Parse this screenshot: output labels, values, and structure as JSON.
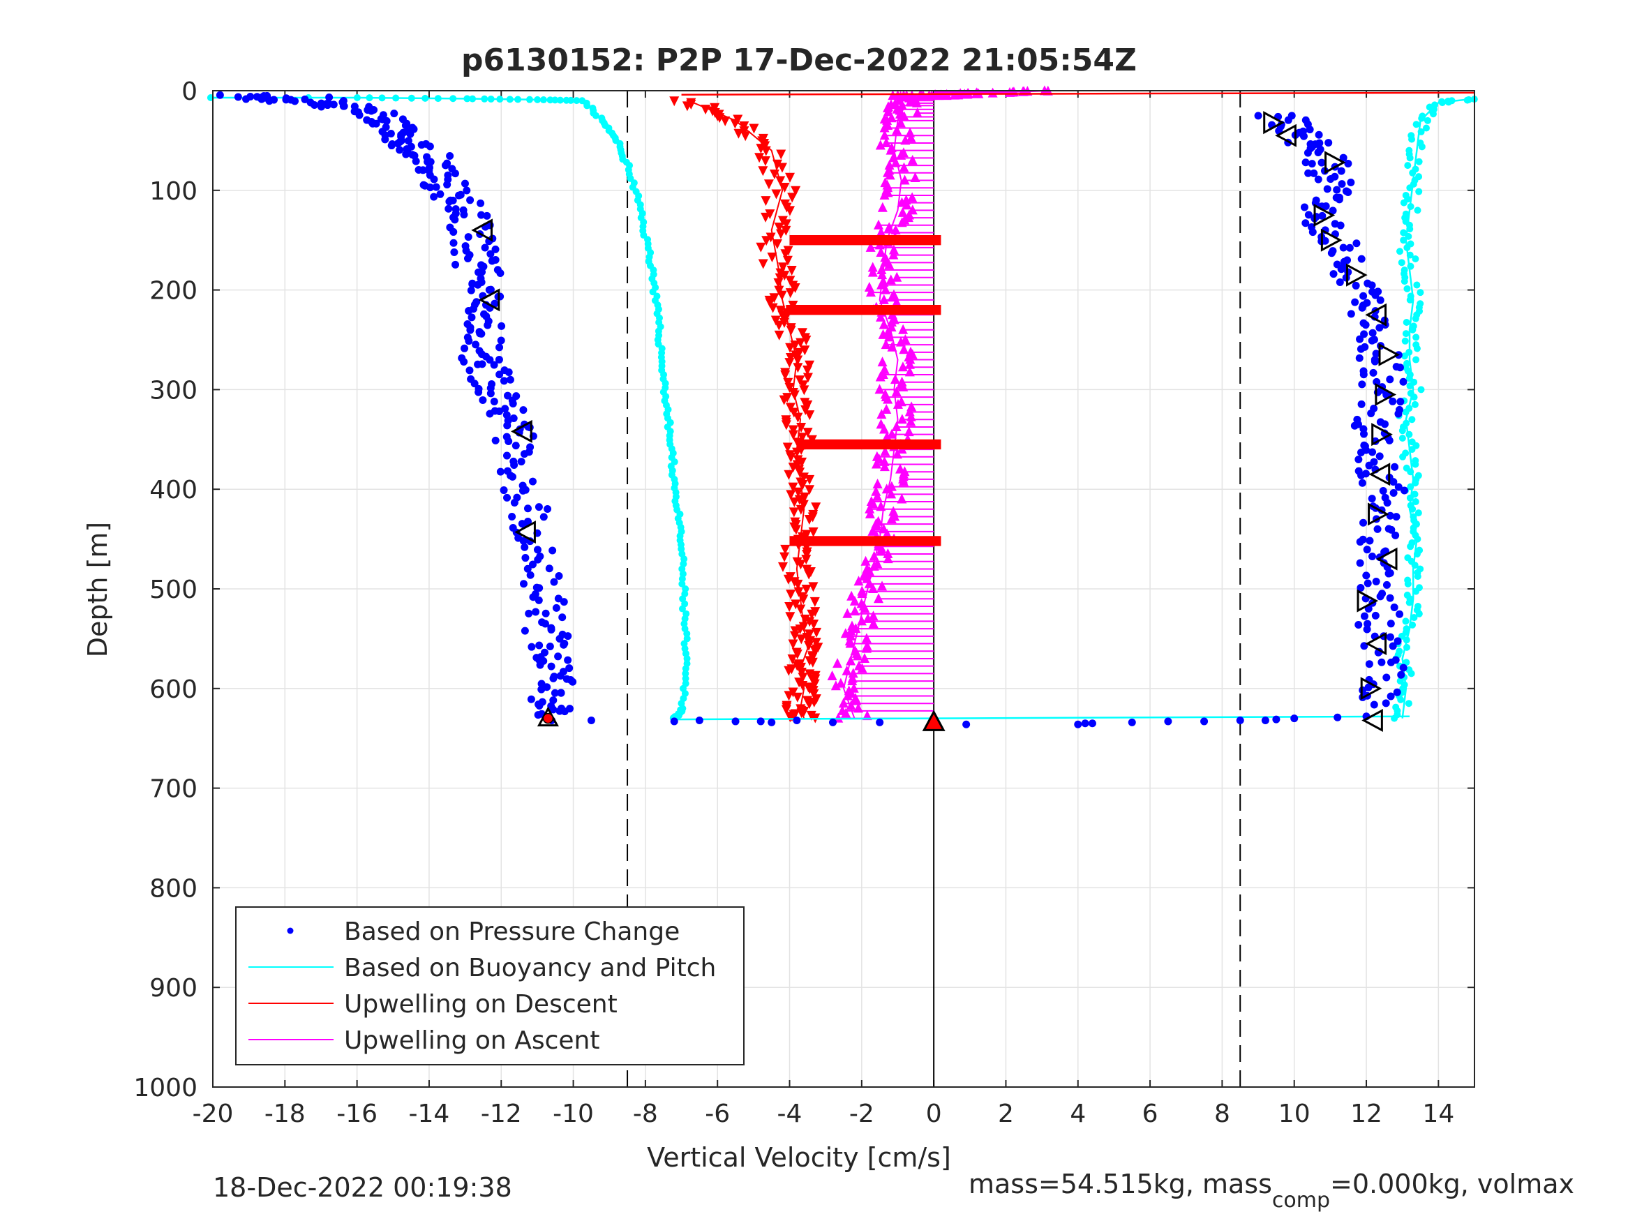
{
  "chart_data": {
    "type": "scatter",
    "title": "p6130152: P2P 17-Dec-2022 21:05:54Z",
    "xlabel": "Vertical Velocity [cm/s]",
    "ylabel": "Depth [m]",
    "xlim": [
      -20,
      15
    ],
    "ylim": [
      0,
      1000
    ],
    "y_reversed": true,
    "grid": true,
    "x_ticks": [
      -20,
      -18,
      -16,
      -14,
      -12,
      -10,
      -8,
      -6,
      -4,
      -2,
      0,
      2,
      4,
      6,
      8,
      10,
      12,
      14
    ],
    "y_ticks": [
      0,
      100,
      200,
      300,
      400,
      500,
      600,
      700,
      800,
      900,
      1000
    ],
    "reference_lines": [
      {
        "x": -8.5,
        "style": "dashed"
      },
      {
        "x": 8.5,
        "style": "dashed"
      },
      {
        "x": 0,
        "style": "solid"
      }
    ],
    "legend": {
      "position": "bottom-left",
      "entries": [
        {
          "label": "Based on Pressure Change",
          "color": "#0000ff",
          "marker": "dot"
        },
        {
          "label": "Based on Buoyancy and Pitch",
          "color": "#00ffff",
          "marker": "line"
        },
        {
          "label": "Upwelling on Descent",
          "color": "#ff0000",
          "marker": "line"
        },
        {
          "label": "Upwelling on Ascent",
          "color": "#ff00ff",
          "marker": "line"
        }
      ]
    },
    "series": [
      {
        "name": "Based on Pressure Change",
        "segment": "descent",
        "color": "#0000ff",
        "x": [
          -19.2,
          -18.5,
          -17,
          -16.5,
          -15.5,
          -15,
          -14.8,
          -14.5,
          -14.0,
          -13.8,
          -13.5,
          -13.2,
          -12.9,
          -12.8,
          -12.7,
          -12.6,
          -12.5,
          -12.4,
          -12.6,
          -12.5,
          -12.3,
          -12.0,
          -11.8,
          -11.6,
          -11.5,
          -11.3,
          -11.2,
          -11.0,
          -10.9,
          -10.8,
          -10.7,
          -10.6,
          -10.5,
          -10.6,
          -10.7
        ],
        "y": [
          5,
          8,
          10,
          15,
          25,
          35,
          45,
          55,
          65,
          80,
          95,
          110,
          130,
          150,
          170,
          190,
          210,
          230,
          250,
          270,
          290,
          310,
          330,
          350,
          380,
          410,
          440,
          470,
          500,
          530,
          555,
          575,
          595,
          615,
          630
        ]
      },
      {
        "name": "Based on Pressure Change",
        "segment": "ascent",
        "color": "#0000ff",
        "x": [
          9.6,
          10.1,
          10.6,
          10.9,
          11.0,
          10.8,
          10.9,
          11.2,
          11.6,
          11.8,
          12.0,
          12.3,
          12.5,
          12.4,
          12.2,
          12.3,
          12.4,
          12.5,
          12.3,
          12.2,
          12.2,
          12.4,
          12.3,
          12.5,
          12.2
        ],
        "y": [
          25,
          40,
          55,
          75,
          95,
          115,
          135,
          160,
          185,
          210,
          235,
          260,
          285,
          310,
          335,
          360,
          385,
          410,
          440,
          470,
          500,
          530,
          560,
          590,
          620
        ]
      },
      {
        "name": "Based on Pressure Change",
        "segment": "bottom",
        "color": "#0000ff",
        "x": [
          -10.6,
          -9.5,
          -7.2,
          -6.5,
          -5.5,
          -4.8,
          -4.5,
          -3.8,
          -2.8,
          -1.5,
          0.9,
          4.0,
          4.2,
          4.4,
          5.5,
          6.5,
          7.5,
          8.5,
          9.2,
          9.5,
          10.0,
          11.2,
          12.0
        ],
        "y": [
          632,
          632,
          633,
          632,
          633,
          633,
          634,
          632,
          634,
          634,
          636,
          636,
          635,
          635,
          634,
          633,
          633,
          632,
          632,
          631,
          630,
          629,
          628
        ]
      },
      {
        "name": "Based on Buoyancy and Pitch",
        "segment": "descent",
        "color": "#00ffff",
        "x": [
          -20.0,
          -16.0,
          -13.0,
          -11.0,
          -9.7,
          -9.2,
          -8.8,
          -8.5,
          -8.2,
          -8.0,
          -7.8,
          -7.7,
          -7.6,
          -7.5,
          -7.4,
          -7.3,
          -7.2,
          -7.1,
          -7.0,
          -6.95,
          -6.9,
          -6.9,
          -6.95,
          -7.2
        ],
        "y": [
          7,
          7,
          8,
          9,
          10,
          30,
          50,
          75,
          110,
          145,
          180,
          215,
          250,
          285,
          320,
          355,
          390,
          425,
          460,
          500,
          540,
          580,
          620,
          631
        ]
      },
      {
        "name": "Based on Buoyancy and Pitch",
        "segment": "ascent",
        "color": "#00ffff",
        "x": [
          13.0,
          13.1,
          13.0,
          13.2,
          13.3,
          13.3,
          13.4,
          13.2,
          13.3,
          13.2,
          13.1,
          13.3,
          13.2,
          13.2,
          13.3,
          13.2,
          13.1,
          13.2,
          13.3,
          13.4,
          13.5,
          14.0,
          15.0
        ],
        "y": [
          630,
          600,
          570,
          540,
          510,
          480,
          450,
          420,
          390,
          360,
          330,
          300,
          270,
          240,
          210,
          180,
          150,
          120,
          90,
          60,
          30,
          12,
          8
        ]
      },
      {
        "name": "Upwelling on Descent",
        "color": "#ff0000",
        "x": [
          -6.8,
          -5.5,
          -4.5,
          -4.2,
          -4.5,
          -4.3,
          -4.2,
          -4.0,
          -3.8,
          -3.9,
          -3.7,
          -3.8,
          -3.7,
          -3.6,
          -3.7,
          -3.8,
          -3.7,
          -3.6,
          -3.5,
          -3.7,
          -3.6,
          -3.7,
          -3.6,
          -3.7,
          -3.8,
          -3.5,
          -3.7
        ],
        "y": [
          10,
          30,
          60,
          100,
          140,
          180,
          210,
          240,
          270,
          300,
          330,
          360,
          390,
          420,
          450,
          480,
          510,
          540,
          560,
          580,
          600,
          620,
          630,
          150,
          220,
          355,
          452
        ]
      },
      {
        "name": "Upwelling on Ascent",
        "color": "#ff00ff",
        "x": [
          -2.2,
          -2.5,
          -2.3,
          -2.1,
          -1.9,
          -1.7,
          -1.5,
          -1.4,
          -1.2,
          -1.1,
          -1.0,
          -1.1,
          -1.0,
          -1.2,
          -1.5,
          -1.4,
          -1.3,
          -1.0,
          -0.9,
          -1.1,
          -1.0,
          -0.8,
          -1.0,
          0.0,
          1.0,
          3.2
        ],
        "y": [
          630,
          600,
          570,
          540,
          510,
          480,
          450,
          420,
          390,
          360,
          330,
          300,
          270,
          240,
          210,
          180,
          150,
          120,
          90,
          60,
          30,
          15,
          5,
          5,
          3,
          0
        ]
      }
    ],
    "markers": {
      "triangles_left": {
        "x": [
          -12.5,
          -12.3,
          -11.4,
          -11.3,
          9.8,
          12.3,
          12.4,
          12.6,
          12.3,
          12.2
        ],
        "y": [
          140,
          210,
          342,
          443,
          45,
          225,
          385,
          470,
          555,
          632
        ]
      },
      "triangles_right": {
        "x": [
          9.4,
          11.1,
          10.8,
          11.0,
          11.7,
          12.6,
          12.5,
          12.4,
          12.3,
          12.0,
          12.1
        ],
        "y": [
          32,
          72,
          125,
          150,
          185,
          265,
          305,
          345,
          425,
          512,
          600
        ]
      },
      "red_triangle": {
        "x": [
          0
        ],
        "y": [
          634
        ]
      },
      "red_dot": {
        "x": [
          -10.7
        ],
        "y": [
          630
        ]
      }
    }
  },
  "footer": {
    "timestamp": "18-Dec-2022 00:19:38",
    "mass_text_a": "mass=54.515kg, mass",
    "mass_sub": "comp",
    "mass_text_b": "=0.000kg, volmax"
  }
}
